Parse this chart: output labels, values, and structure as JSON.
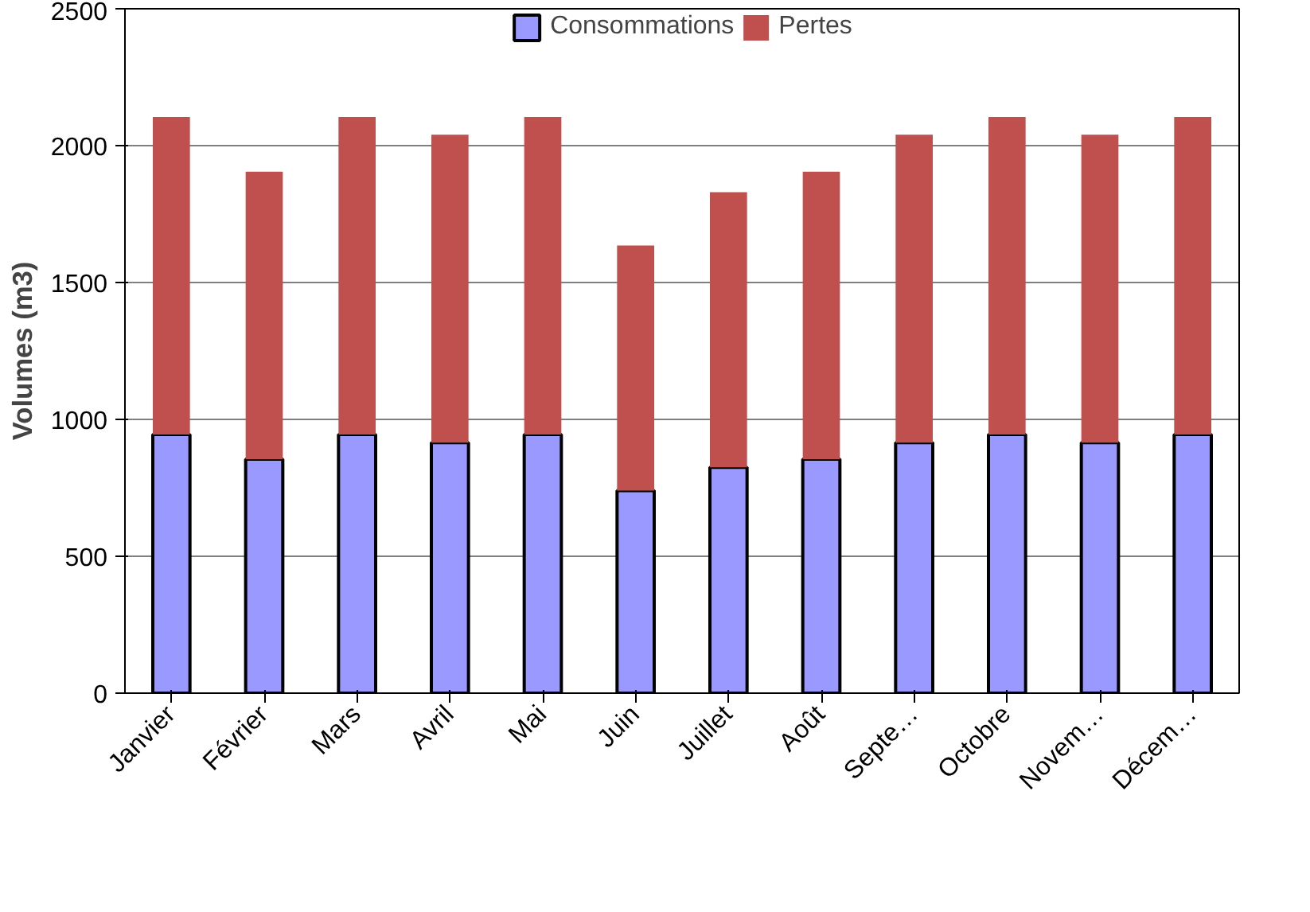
{
  "chart_data": {
    "type": "bar",
    "stacked": true,
    "ylabel": "Volumes (m3)",
    "categories": [
      "Janvier",
      "Février",
      "Mars",
      "Avril",
      "Mai",
      "Juin",
      "Juillet",
      "Août",
      "Septe…",
      "Octobre",
      "Novem…",
      "Décem…"
    ],
    "series": [
      {
        "name": "Consommations",
        "color": "#9999ff",
        "values": [
          945,
          855,
          945,
          915,
          945,
          740,
          825,
          855,
          915,
          945,
          915,
          945
        ]
      },
      {
        "name": "Pertes",
        "color": "#c0504d",
        "values": [
          1160,
          1050,
          1160,
          1125,
          1160,
          895,
          1005,
          1050,
          1125,
          1160,
          1125,
          1160
        ]
      }
    ],
    "ylim": [
      0,
      2500
    ],
    "yticks": [
      0,
      500,
      1000,
      1500,
      2000,
      2500
    ],
    "grid": "y",
    "legend": "top"
  }
}
